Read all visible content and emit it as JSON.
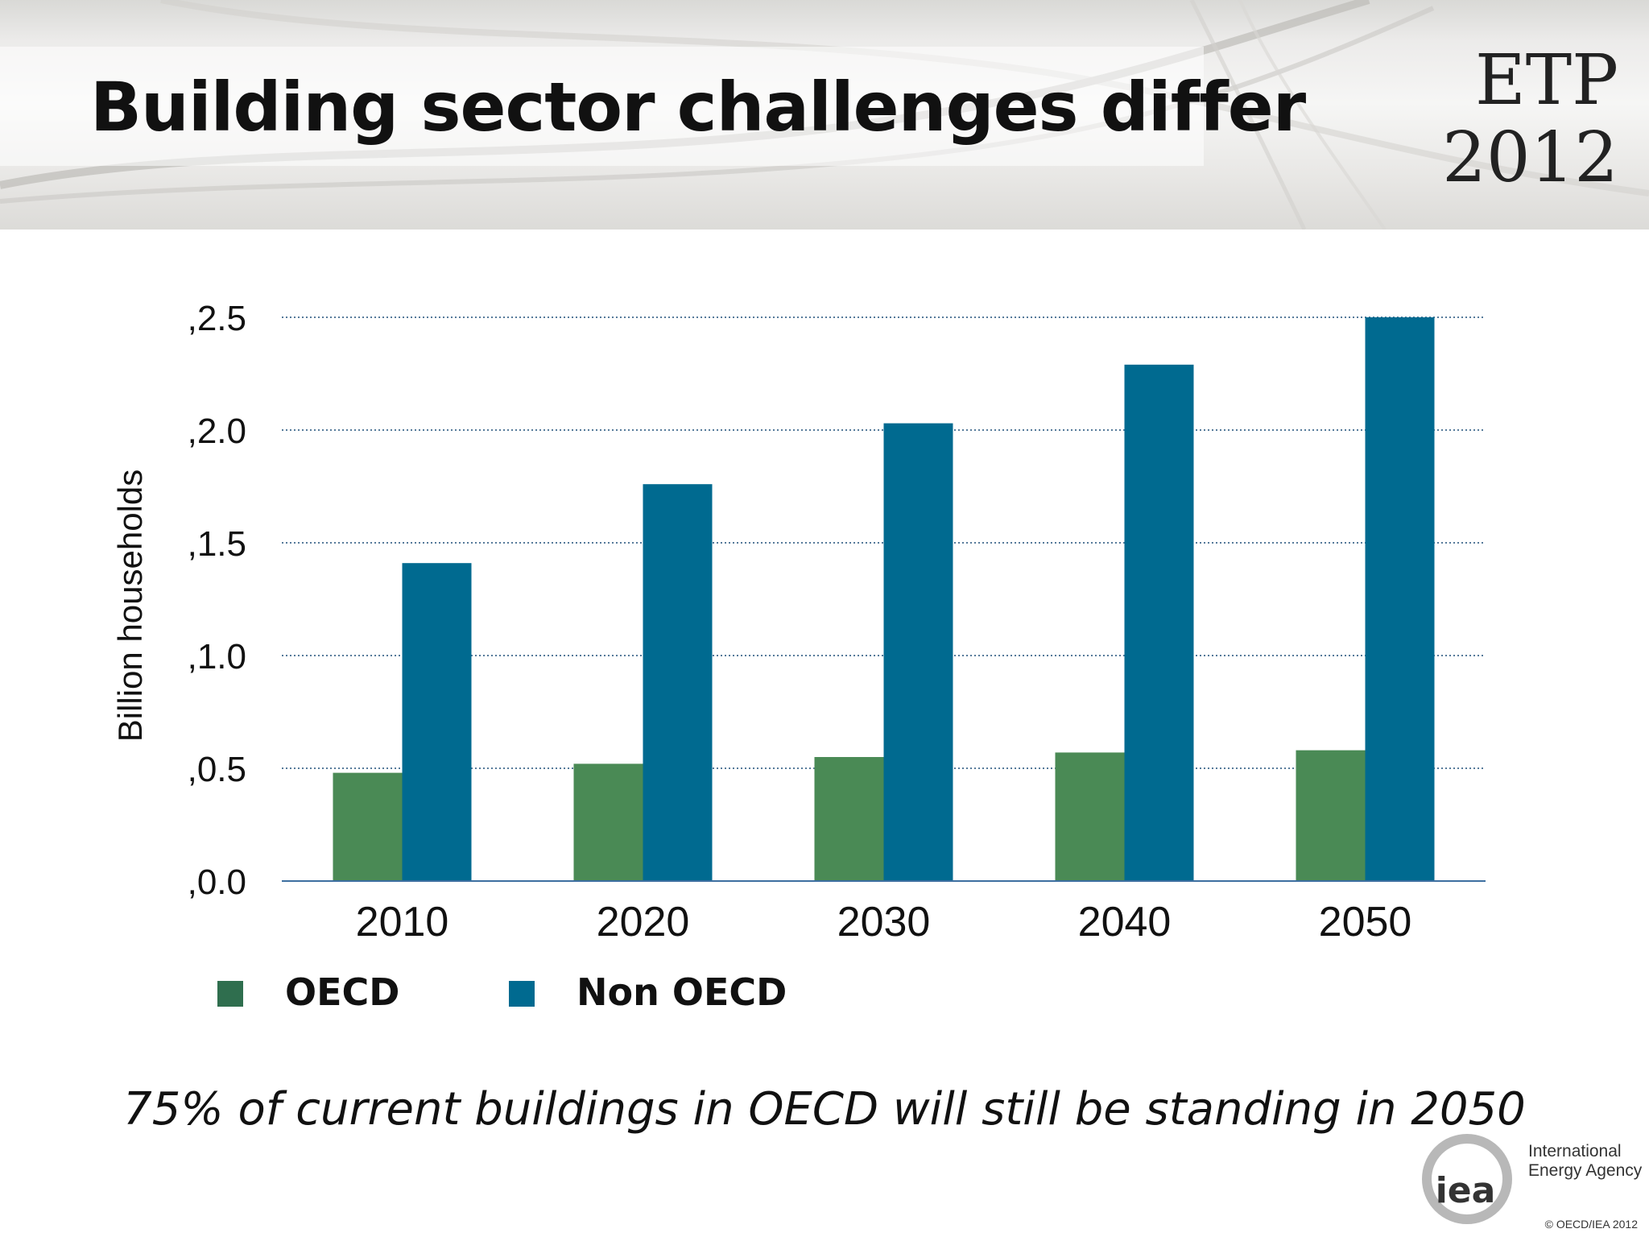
{
  "slide": {
    "title": "Building sector challenges differ",
    "logo_line1": "ETP",
    "logo_line2": "2012",
    "note": "75% of current buildings in OECD will still be standing in 2050",
    "agency_line1": "International",
    "agency_line2": "Energy Agency",
    "agency_mark": "iea",
    "copyright": "© OECD/IEA 2012"
  },
  "chart_data": {
    "type": "bar",
    "title": "",
    "xlabel": "",
    "ylabel": "Billion households",
    "categories": [
      "2010",
      "2020",
      "2030",
      "2040",
      "2050"
    ],
    "series": [
      {
        "name": "OECD",
        "color": "#4a8a55",
        "legend_color": "#2f6e4e",
        "values": [
          0.48,
          0.52,
          0.55,
          0.57,
          0.58
        ]
      },
      {
        "name": "Non OECD",
        "color": "#006a90",
        "legend_color": "#006a90",
        "values": [
          1.41,
          1.76,
          2.03,
          2.29,
          2.5
        ]
      }
    ],
    "ylim": [
      0,
      2.5
    ],
    "yticks": [
      0,
      0.5,
      1.0,
      1.5,
      2.0,
      2.5
    ],
    "ytick_labels": [
      ",0.0",
      ",0.5",
      ",1.0",
      ",1.5",
      ",2.0",
      ",2.5"
    ],
    "grid": true,
    "legend_position": "bottom-left"
  }
}
